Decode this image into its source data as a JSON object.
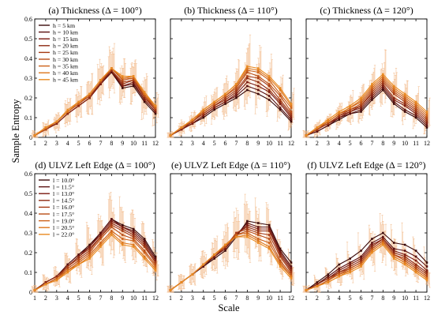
{
  "figure": {
    "ylabel": "Sample Entropy",
    "xlabel": "Scale"
  },
  "colors": {
    "palette": [
      "#3a0a0a",
      "#5a1010",
      "#7a1a10",
      "#8e2a12",
      "#a53a14",
      "#b84c16",
      "#cc6018",
      "#dc761c",
      "#e98b22"
    ],
    "errorbar": "#f0b07a"
  },
  "chart_data": [
    {
      "type": "line",
      "title": "(a) Thickness (Δ = 100°)",
      "ylim": [
        0,
        0.6
      ],
      "yticks": [
        "0",
        "0.1",
        "0.2",
        "0.3",
        "0.4",
        "0.5",
        "0.6"
      ],
      "x": [
        1,
        2,
        3,
        4,
        5,
        6,
        7,
        8,
        9,
        10,
        11,
        12
      ],
      "series": [
        {
          "name": "h = 5 km",
          "values": [
            0.01,
            0.04,
            0.07,
            0.12,
            0.16,
            0.2,
            0.27,
            0.33,
            0.25,
            0.26,
            0.18,
            0.12
          ]
        },
        {
          "name": "h = 10 km",
          "values": [
            0.01,
            0.04,
            0.07,
            0.12,
            0.16,
            0.2,
            0.27,
            0.33,
            0.26,
            0.27,
            0.19,
            0.13
          ]
        },
        {
          "name": "h = 15 km",
          "values": [
            0.01,
            0.04,
            0.07,
            0.12,
            0.16,
            0.2,
            0.27,
            0.34,
            0.26,
            0.28,
            0.19,
            0.13
          ]
        },
        {
          "name": "h = 20 km",
          "values": [
            0.01,
            0.04,
            0.07,
            0.12,
            0.16,
            0.2,
            0.28,
            0.34,
            0.27,
            0.29,
            0.2,
            0.14
          ]
        },
        {
          "name": "h = 25 km",
          "values": [
            0.01,
            0.04,
            0.08,
            0.13,
            0.17,
            0.21,
            0.28,
            0.34,
            0.28,
            0.29,
            0.21,
            0.14
          ]
        },
        {
          "name": "h = 30 km",
          "values": [
            0.01,
            0.04,
            0.08,
            0.13,
            0.17,
            0.21,
            0.28,
            0.35,
            0.29,
            0.3,
            0.21,
            0.15
          ]
        },
        {
          "name": "h = 35 km",
          "values": [
            0.01,
            0.05,
            0.08,
            0.13,
            0.17,
            0.22,
            0.29,
            0.35,
            0.3,
            0.3,
            0.22,
            0.15
          ]
        },
        {
          "name": "h = 40 km",
          "values": [
            0.01,
            0.05,
            0.08,
            0.13,
            0.18,
            0.22,
            0.29,
            0.35,
            0.3,
            0.31,
            0.22,
            0.16
          ]
        },
        {
          "name": "h = 45 km",
          "values": [
            0.01,
            0.05,
            0.08,
            0.14,
            0.18,
            0.22,
            0.29,
            0.35,
            0.31,
            0.31,
            0.23,
            0.16
          ]
        }
      ]
    },
    {
      "type": "line",
      "title": "(b) Thickness (Δ = 110°)",
      "ylim": [
        0,
        0.6
      ],
      "yticks": [
        "0",
        "0.1",
        "0.2",
        "0.3",
        "0.4",
        "0.5",
        "0.6"
      ],
      "x": [
        1,
        2,
        3,
        4,
        5,
        6,
        7,
        8,
        9,
        10,
        11,
        12
      ],
      "series": [
        {
          "values": [
            0.01,
            0.04,
            0.07,
            0.1,
            0.14,
            0.17,
            0.2,
            0.24,
            0.22,
            0.19,
            0.14,
            0.08
          ]
        },
        {
          "values": [
            0.01,
            0.04,
            0.07,
            0.11,
            0.15,
            0.18,
            0.21,
            0.26,
            0.24,
            0.21,
            0.15,
            0.09
          ]
        },
        {
          "values": [
            0.01,
            0.04,
            0.07,
            0.11,
            0.15,
            0.18,
            0.22,
            0.28,
            0.26,
            0.23,
            0.17,
            0.1
          ]
        },
        {
          "values": [
            0.01,
            0.04,
            0.08,
            0.12,
            0.16,
            0.19,
            0.23,
            0.3,
            0.28,
            0.24,
            0.18,
            0.11
          ]
        },
        {
          "values": [
            0.01,
            0.05,
            0.08,
            0.12,
            0.16,
            0.2,
            0.24,
            0.31,
            0.3,
            0.26,
            0.19,
            0.12
          ]
        },
        {
          "values": [
            0.01,
            0.05,
            0.08,
            0.13,
            0.17,
            0.21,
            0.25,
            0.33,
            0.31,
            0.27,
            0.21,
            0.13
          ]
        },
        {
          "values": [
            0.01,
            0.05,
            0.09,
            0.13,
            0.17,
            0.21,
            0.26,
            0.34,
            0.33,
            0.29,
            0.22,
            0.15
          ]
        },
        {
          "values": [
            0.01,
            0.05,
            0.09,
            0.14,
            0.18,
            0.22,
            0.27,
            0.35,
            0.34,
            0.3,
            0.24,
            0.16
          ]
        },
        {
          "values": [
            0.01,
            0.05,
            0.09,
            0.14,
            0.18,
            0.22,
            0.27,
            0.36,
            0.35,
            0.31,
            0.25,
            0.17
          ]
        }
      ]
    },
    {
      "type": "line",
      "title": "(c) Thickness (Δ = 120°)",
      "ylim": [
        0,
        0.6
      ],
      "yticks": [
        "0",
        "0.1",
        "0.2",
        "0.3",
        "0.4",
        "0.5",
        "0.6"
      ],
      "x": [
        1,
        2,
        3,
        4,
        5,
        6,
        7,
        8,
        9,
        10,
        11,
        12
      ],
      "series": [
        {
          "values": [
            0.01,
            0.03,
            0.06,
            0.09,
            0.12,
            0.13,
            0.19,
            0.24,
            0.17,
            0.13,
            0.1,
            0.05
          ]
        },
        {
          "values": [
            0.01,
            0.03,
            0.06,
            0.1,
            0.12,
            0.14,
            0.2,
            0.25,
            0.18,
            0.14,
            0.11,
            0.06
          ]
        },
        {
          "values": [
            0.01,
            0.04,
            0.07,
            0.1,
            0.13,
            0.15,
            0.21,
            0.26,
            0.19,
            0.16,
            0.12,
            0.07
          ]
        },
        {
          "values": [
            0.01,
            0.04,
            0.07,
            0.11,
            0.13,
            0.16,
            0.22,
            0.27,
            0.2,
            0.17,
            0.13,
            0.08
          ]
        },
        {
          "values": [
            0.01,
            0.04,
            0.07,
            0.11,
            0.14,
            0.16,
            0.23,
            0.28,
            0.22,
            0.18,
            0.14,
            0.09
          ]
        },
        {
          "values": [
            0.01,
            0.04,
            0.08,
            0.12,
            0.14,
            0.17,
            0.24,
            0.29,
            0.23,
            0.19,
            0.15,
            0.1
          ]
        },
        {
          "values": [
            0.01,
            0.05,
            0.08,
            0.12,
            0.15,
            0.18,
            0.25,
            0.3,
            0.24,
            0.2,
            0.16,
            0.11
          ]
        },
        {
          "values": [
            0.01,
            0.05,
            0.08,
            0.12,
            0.15,
            0.19,
            0.26,
            0.31,
            0.25,
            0.21,
            0.17,
            0.12
          ]
        },
        {
          "values": [
            0.01,
            0.05,
            0.09,
            0.13,
            0.16,
            0.2,
            0.27,
            0.32,
            0.26,
            0.22,
            0.18,
            0.13
          ]
        }
      ]
    },
    {
      "type": "line",
      "title": "(d) ULVZ Left Edge (Δ = 100°)",
      "ylim": [
        0,
        0.6
      ],
      "yticks": [
        "0",
        "0.1",
        "0.2",
        "0.3",
        "0.4",
        "0.5",
        "0.6"
      ],
      "x": [
        1,
        2,
        3,
        4,
        5,
        6,
        7,
        8,
        9,
        10,
        11,
        12
      ],
      "series": [
        {
          "name": "l = 10.0°",
          "values": [
            0.01,
            0.05,
            0.08,
            0.14,
            0.19,
            0.24,
            0.3,
            0.37,
            0.34,
            0.32,
            0.27,
            0.18
          ]
        },
        {
          "name": "l = 11.5°",
          "values": [
            0.01,
            0.05,
            0.08,
            0.14,
            0.19,
            0.23,
            0.3,
            0.37,
            0.33,
            0.31,
            0.26,
            0.17
          ]
        },
        {
          "name": "l = 13.0°",
          "values": [
            0.01,
            0.05,
            0.08,
            0.13,
            0.18,
            0.23,
            0.29,
            0.36,
            0.33,
            0.3,
            0.25,
            0.16
          ]
        },
        {
          "name": "l = 14.5°",
          "values": [
            0.01,
            0.05,
            0.08,
            0.13,
            0.18,
            0.22,
            0.28,
            0.35,
            0.32,
            0.29,
            0.24,
            0.15
          ]
        },
        {
          "name": "l = 16.0°",
          "values": [
            0.01,
            0.04,
            0.07,
            0.13,
            0.17,
            0.21,
            0.28,
            0.34,
            0.31,
            0.28,
            0.23,
            0.15
          ]
        },
        {
          "name": "l = 17.5°",
          "values": [
            0.01,
            0.04,
            0.07,
            0.12,
            0.16,
            0.2,
            0.27,
            0.33,
            0.29,
            0.27,
            0.21,
            0.14
          ]
        },
        {
          "name": "l = 19.0°",
          "values": [
            0.01,
            0.04,
            0.07,
            0.11,
            0.15,
            0.19,
            0.25,
            0.31,
            0.27,
            0.26,
            0.2,
            0.13
          ]
        },
        {
          "name": "l = 20.5°",
          "values": [
            0.01,
            0.04,
            0.06,
            0.11,
            0.14,
            0.18,
            0.24,
            0.3,
            0.25,
            0.24,
            0.18,
            0.12
          ]
        },
        {
          "name": "l = 22.0°",
          "values": [
            0.01,
            0.04,
            0.06,
            0.1,
            0.14,
            0.17,
            0.23,
            0.29,
            0.24,
            0.23,
            0.17,
            0.11
          ]
        }
      ]
    },
    {
      "type": "line",
      "title": "(e) ULVZ Left Edge (Δ = 110°)",
      "ylim": [
        0,
        0.6
      ],
      "yticks": [
        "0",
        "0.1",
        "0.2",
        "0.3",
        "0.4",
        "0.5",
        "0.6"
      ],
      "x": [
        1,
        2,
        3,
        4,
        5,
        6,
        7,
        8,
        9,
        10,
        11,
        12
      ],
      "series": [
        {
          "values": [
            0.01,
            0.05,
            0.09,
            0.13,
            0.17,
            0.21,
            0.28,
            0.36,
            0.35,
            0.34,
            0.22,
            0.15
          ]
        },
        {
          "values": [
            0.01,
            0.05,
            0.09,
            0.13,
            0.18,
            0.22,
            0.29,
            0.35,
            0.33,
            0.33,
            0.21,
            0.13
          ]
        },
        {
          "values": [
            0.01,
            0.05,
            0.09,
            0.14,
            0.18,
            0.22,
            0.29,
            0.34,
            0.32,
            0.32,
            0.2,
            0.12
          ]
        },
        {
          "values": [
            0.01,
            0.05,
            0.09,
            0.14,
            0.18,
            0.23,
            0.3,
            0.33,
            0.31,
            0.31,
            0.19,
            0.11
          ]
        },
        {
          "values": [
            0.01,
            0.05,
            0.09,
            0.14,
            0.19,
            0.23,
            0.3,
            0.32,
            0.3,
            0.29,
            0.18,
            0.1
          ]
        },
        {
          "values": [
            0.01,
            0.05,
            0.09,
            0.14,
            0.19,
            0.23,
            0.29,
            0.31,
            0.29,
            0.27,
            0.16,
            0.09
          ]
        },
        {
          "values": [
            0.01,
            0.05,
            0.09,
            0.14,
            0.19,
            0.24,
            0.29,
            0.3,
            0.27,
            0.25,
            0.15,
            0.08
          ]
        },
        {
          "values": [
            0.01,
            0.05,
            0.09,
            0.14,
            0.19,
            0.24,
            0.28,
            0.29,
            0.26,
            0.23,
            0.14,
            0.08
          ]
        },
        {
          "values": [
            0.01,
            0.05,
            0.09,
            0.14,
            0.19,
            0.24,
            0.28,
            0.28,
            0.25,
            0.22,
            0.13,
            0.07
          ]
        }
      ]
    },
    {
      "type": "line",
      "title": "(f) ULVZ Left Edge (Δ = 120°)",
      "ylim": [
        0,
        0.6
      ],
      "yticks": [
        "0",
        "0.1",
        "0.2",
        "0.3",
        "0.4",
        "0.5",
        "0.6"
      ],
      "x": [
        1,
        2,
        3,
        4,
        5,
        6,
        7,
        8,
        9,
        10,
        11,
        12
      ],
      "series": [
        {
          "values": [
            0.01,
            0.05,
            0.09,
            0.14,
            0.17,
            0.21,
            0.27,
            0.3,
            0.25,
            0.24,
            0.21,
            0.15
          ]
        },
        {
          "values": [
            0.01,
            0.04,
            0.08,
            0.12,
            0.15,
            0.18,
            0.25,
            0.28,
            0.22,
            0.21,
            0.18,
            0.13
          ]
        },
        {
          "values": [
            0.01,
            0.04,
            0.07,
            0.11,
            0.14,
            0.17,
            0.24,
            0.27,
            0.21,
            0.19,
            0.16,
            0.11
          ]
        },
        {
          "values": [
            0.01,
            0.04,
            0.07,
            0.1,
            0.13,
            0.16,
            0.23,
            0.27,
            0.2,
            0.18,
            0.14,
            0.1
          ]
        },
        {
          "values": [
            0.01,
            0.03,
            0.06,
            0.1,
            0.12,
            0.15,
            0.22,
            0.26,
            0.19,
            0.17,
            0.13,
            0.09
          ]
        },
        {
          "values": [
            0.01,
            0.03,
            0.06,
            0.09,
            0.12,
            0.15,
            0.22,
            0.26,
            0.19,
            0.16,
            0.12,
            0.08
          ]
        },
        {
          "values": [
            0.01,
            0.03,
            0.06,
            0.09,
            0.11,
            0.14,
            0.21,
            0.25,
            0.18,
            0.15,
            0.11,
            0.07
          ]
        },
        {
          "values": [
            0.01,
            0.03,
            0.05,
            0.08,
            0.11,
            0.14,
            0.21,
            0.25,
            0.18,
            0.15,
            0.11,
            0.07
          ]
        },
        {
          "values": [
            0.01,
            0.03,
            0.05,
            0.08,
            0.1,
            0.13,
            0.2,
            0.24,
            0.17,
            0.14,
            0.1,
            0.06
          ]
        }
      ]
    }
  ]
}
